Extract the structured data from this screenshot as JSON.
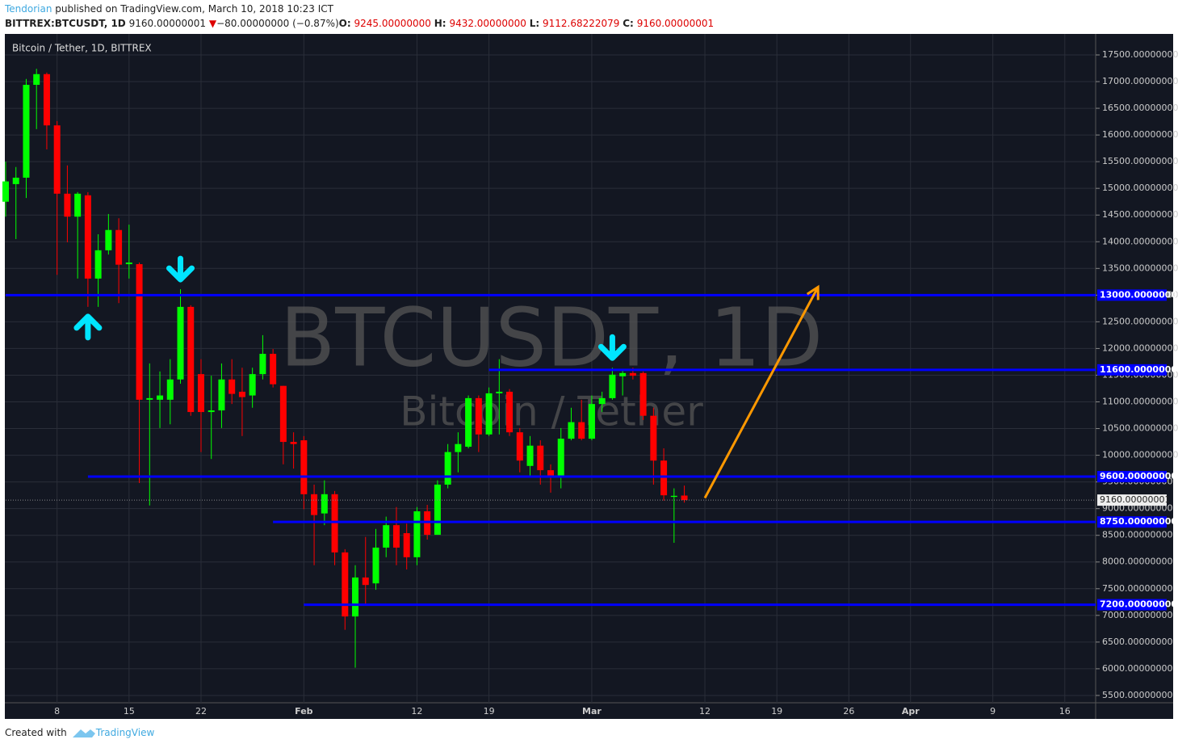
{
  "header": {
    "author": "Tendorian",
    "published": "published on TradingView.com, March 10, 2018 10:23 ICT",
    "symbol": "BITTREX:BTCUSDT, 1D",
    "last": "9160.00000001",
    "direction": "▼",
    "change": "−80.00000000 (−0.87%)",
    "ohlc": [
      {
        "key": "O:",
        "value": "9245.00000000"
      },
      {
        "key": "H:",
        "value": "9432.00000000"
      },
      {
        "key": "L:",
        "value": "9112.68222079"
      },
      {
        "key": "C:",
        "value": "9160.00000001"
      }
    ]
  },
  "footer": {
    "created": "Created with",
    "brand": "TradingView"
  },
  "chart_data": {
    "type": "candlestick",
    "title": "Bitcoin / Tether, 1D, BITTREX",
    "watermark": "BTCUSDT, 1D",
    "watermark_sub": "Bitcoin / Tether",
    "up_color": "#00ff00",
    "down_color": "#ff0000",
    "grid": true,
    "x": [
      "2018-01-03",
      "2018-01-04",
      "2018-01-05",
      "2018-01-06",
      "2018-01-07",
      "2018-01-08",
      "2018-01-09",
      "2018-01-10",
      "2018-01-11",
      "2018-01-12",
      "2018-01-13",
      "2018-01-14",
      "2018-01-15",
      "2018-01-16",
      "2018-01-17",
      "2018-01-18",
      "2018-01-19",
      "2018-01-20",
      "2018-01-21",
      "2018-01-22",
      "2018-01-23",
      "2018-01-24",
      "2018-01-25",
      "2018-01-26",
      "2018-01-27",
      "2018-01-28",
      "2018-01-29",
      "2018-01-30",
      "2018-01-31",
      "2018-02-01",
      "2018-02-02",
      "2018-02-03",
      "2018-02-04",
      "2018-02-05",
      "2018-02-06",
      "2018-02-07",
      "2018-02-08",
      "2018-02-09",
      "2018-02-10",
      "2018-02-11",
      "2018-02-12",
      "2018-02-13",
      "2018-02-14",
      "2018-02-15",
      "2018-02-16",
      "2018-02-17",
      "2018-02-18",
      "2018-02-19",
      "2018-02-20",
      "2018-02-21",
      "2018-02-22",
      "2018-02-23",
      "2018-02-24",
      "2018-02-25",
      "2018-02-26",
      "2018-02-27",
      "2018-02-28",
      "2018-03-01",
      "2018-03-02",
      "2018-03-03",
      "2018-03-04",
      "2018-03-05",
      "2018-03-06",
      "2018-03-07",
      "2018-03-08",
      "2018-03-09",
      "2018-03-10"
    ],
    "open": [
      14750,
      15080,
      15200,
      16940,
      17140,
      16180,
      14900,
      14470,
      14870,
      13310,
      13840,
      14220,
      13580,
      13580,
      11040,
      11040,
      11040,
      11420,
      12780,
      11520,
      10810,
      10840,
      11420,
      11190,
      11120,
      11520,
      11900,
      11300,
      10250,
      10280,
      9270,
      8910,
      9270,
      8180,
      6980,
      7710,
      7600,
      8270,
      8690,
      8540,
      8090,
      8950,
      8510,
      9450,
      10060,
      10160,
      11070,
      10390,
      11160,
      11190,
      10430,
      9800,
      10180,
      9720,
      9600,
      10310,
      10620,
      10310,
      10960,
      11070,
      11480,
      11540,
      11540,
      10740,
      9900,
      9220,
      9245
    ],
    "high": [
      15500,
      15400,
      17050,
      17240,
      17170,
      16260,
      15430,
      14930,
      14930,
      14140,
      14520,
      14440,
      14320,
      13610,
      11720,
      11570,
      11800,
      13110,
      12810,
      11800,
      11490,
      11720,
      11800,
      11640,
      11640,
      12250,
      11990,
      11300,
      10430,
      10360,
      9450,
      9530,
      9330,
      8240,
      7940,
      8470,
      8620,
      8850,
      9030,
      8720,
      9030,
      9070,
      9530,
      10210,
      10430,
      11120,
      11120,
      11270,
      11800,
      11240,
      10510,
      10360,
      10280,
      9830,
      10510,
      10890,
      11040,
      11120,
      11190,
      11640,
      11600,
      11640,
      11570,
      10890,
      10130,
      9380,
      9432
    ],
    "low": [
      14470,
      14050,
      14820,
      16110,
      15730,
      13380,
      13990,
      13310,
      12780,
      12780,
      13760,
      12850,
      13310,
      9480,
      9060,
      10510,
      10580,
      11340,
      10740,
      10060,
      9930,
      10510,
      10960,
      10360,
      10890,
      11420,
      11270,
      9830,
      9750,
      8990,
      7940,
      8690,
      7940,
      6730,
      6020,
      7180,
      7480,
      8090,
      7940,
      7860,
      7940,
      8420,
      8510,
      9380,
      9680,
      10130,
      10060,
      10360,
      10390,
      10360,
      9680,
      9600,
      9450,
      9300,
      9380,
      10280,
      10280,
      10280,
      10810,
      11040,
      11120,
      11420,
      10660,
      9450,
      9150,
      8360,
      9112.68222079
    ],
    "close": [
      15130,
      15200,
      16940,
      17140,
      16180,
      14900,
      14470,
      14900,
      13310,
      13840,
      14220,
      13570,
      13610,
      11040,
      11070,
      11120,
      11420,
      12780,
      10810,
      10810,
      10840,
      11420,
      11150,
      11090,
      11520,
      11900,
      11330,
      10250,
      10210,
      9270,
      8880,
      9270,
      8180,
      6980,
      7710,
      7570,
      8270,
      8690,
      8270,
      8090,
      8950,
      8510,
      9450,
      10060,
      10210,
      11070,
      10390,
      11160,
      11190,
      10430,
      9900,
      10180,
      9720,
      9600,
      10310,
      10620,
      10310,
      10960,
      11070,
      11510,
      11540,
      11490,
      10740,
      9900,
      9250,
      9240,
      9160.00000001
    ],
    "xlim": [
      "2018-01-03",
      "2018-04-19"
    ],
    "xticks": [
      {
        "value": "2018-01-08",
        "label": "8"
      },
      {
        "value": "2018-01-15",
        "label": "15"
      },
      {
        "value": "2018-01-22",
        "label": "22"
      },
      {
        "value": "2018-02-01",
        "label": "Feb"
      },
      {
        "value": "2018-02-12",
        "label": "12"
      },
      {
        "value": "2018-02-19",
        "label": "19"
      },
      {
        "value": "2018-03-01",
        "label": "Mar"
      },
      {
        "value": "2018-03-12",
        "label": "12"
      },
      {
        "value": "2018-03-19",
        "label": "19"
      },
      {
        "value": "2018-03-26",
        "label": "26"
      },
      {
        "value": "2018-04-01",
        "label": "Apr"
      },
      {
        "value": "2018-04-09",
        "label": "9"
      },
      {
        "value": "2018-04-16",
        "label": "16"
      }
    ],
    "ylim": [
      5363,
      17863
    ],
    "yticks": [
      {
        "value": 5500,
        "label": "5500.00000000"
      },
      {
        "value": 6000,
        "label": "6000.00000000"
      },
      {
        "value": 6500,
        "label": "6500.00000000"
      },
      {
        "value": 7000,
        "label": "7000.00000000"
      },
      {
        "value": 7500,
        "label": "7500.00000000"
      },
      {
        "value": 8000,
        "label": "8000.00000000"
      },
      {
        "value": 8500,
        "label": "8500.00000000"
      },
      {
        "value": 9000,
        "label": "9000.00000000"
      },
      {
        "value": 9500,
        "label": "9500.00000000"
      },
      {
        "value": 10000,
        "label": "10000.00000000"
      },
      {
        "value": 10500,
        "label": "10500.00000000"
      },
      {
        "value": 11000,
        "label": "11000.00000000"
      },
      {
        "value": 11500,
        "label": "11500.00000000"
      },
      {
        "value": 12000,
        "label": "12000.00000000"
      },
      {
        "value": 12500,
        "label": "12500.00000000"
      },
      {
        "value": 13000,
        "label": "13000.00000000"
      },
      {
        "value": 13500,
        "label": "13500.00000000"
      },
      {
        "value": 14000,
        "label": "14000.00000000"
      },
      {
        "value": 14500,
        "label": "14500.00000000"
      },
      {
        "value": 15000,
        "label": "15000.00000000"
      },
      {
        "value": 15500,
        "label": "15500.00000000"
      },
      {
        "value": 16000,
        "label": "16000.00000000"
      },
      {
        "value": 16500,
        "label": "16500.00000000"
      },
      {
        "value": 17000,
        "label": "17000.00000000"
      },
      {
        "value": 17500,
        "label": "17500.00000000"
      }
    ],
    "hlines": [
      {
        "value": 13000,
        "label": "13000.00000000",
        "from": "2018-01-03",
        "color": "#0000ff"
      },
      {
        "value": 11600,
        "label": "11600.00000000",
        "from": "2018-02-19",
        "color": "#0000ff"
      },
      {
        "value": 9600,
        "label": "9600.00000000",
        "from": "2018-01-11",
        "color": "#0000ff"
      },
      {
        "value": 8750,
        "label": "8750.00000000",
        "from": "2018-01-29",
        "color": "#0000ff"
      },
      {
        "value": 7200,
        "label": "7200.00000000",
        "from": "2018-02-01",
        "color": "#0000ff"
      }
    ],
    "last_price": {
      "value": 9160.00000001,
      "label": "9160.00000001"
    },
    "markers": [
      {
        "at": "2018-01-11",
        "dir": "up",
        "color": "#00e5ff"
      },
      {
        "at": "2018-01-20",
        "dir": "down",
        "color": "#00e5ff"
      },
      {
        "at": "2018-03-03",
        "dir": "down",
        "color": "#00e5ff"
      }
    ],
    "trend_arrow": {
      "x": [
        "2018-03-12",
        "2018-03-23"
      ],
      "y": [
        9200,
        13150
      ],
      "color": "#ff9800"
    }
  }
}
